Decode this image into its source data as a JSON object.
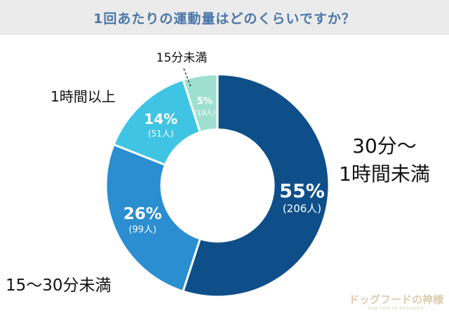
{
  "header": {
    "title": "1回あたりの運動量はどのくらいですか？"
  },
  "chart_data": {
    "type": "pie",
    "donut": true,
    "title": "1回あたりの運動量はどのくらいですか？",
    "slices": [
      {
        "label": "30分〜1時間未満",
        "label_lines": [
          "30分〜",
          "1時間未満"
        ],
        "percent_text": "55%",
        "count_text": "(206人)",
        "value": 55,
        "count": 206,
        "color": "#0e4f8a"
      },
      {
        "label": "15〜30分未満",
        "label_lines": [
          "15〜30分未満"
        ],
        "percent_text": "26%",
        "count_text": "(99人)",
        "value": 26,
        "count": 99,
        "color": "#2a8ed0"
      },
      {
        "label": "1時間以上",
        "label_lines": [
          "1時間以上"
        ],
        "percent_text": "14%",
        "count_text": "(51人)",
        "value": 14,
        "count": 51,
        "color": "#40c4e4"
      },
      {
        "label": "15分未満",
        "label_lines": [
          "15分未満"
        ],
        "percent_text": "5%",
        "count_text": "(19人)",
        "value": 5,
        "count": 19,
        "color": "#9ee0d0"
      }
    ]
  },
  "watermark": {
    "text": "ドッグフードの神様",
    "sub": "Dog food no kamisama"
  }
}
